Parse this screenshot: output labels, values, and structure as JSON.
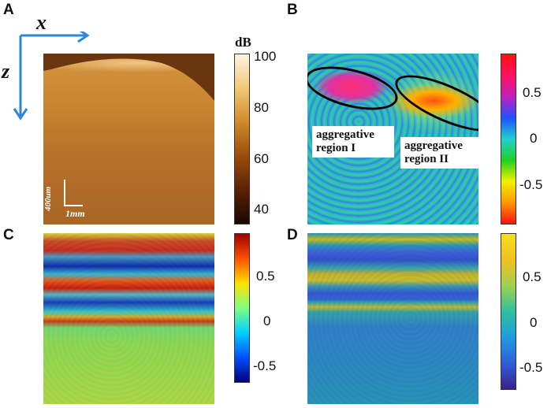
{
  "panels": {
    "A": {
      "label": "A",
      "axis_x": "x",
      "axis_z": "z",
      "scalebar_v": "400um",
      "scalebar_h": "1mm",
      "colorbar": {
        "unit": "dB",
        "ticks": [
          "100",
          "80",
          "60",
          "40"
        ],
        "colors": [
          "#1a0802",
          "#5a2205",
          "#9c4c0c",
          "#d08a2a",
          "#f0c97a",
          "#fbf3e3"
        ]
      }
    },
    "B": {
      "label": "B",
      "region1": "aggregative region I",
      "region2": "aggregative region II",
      "colorbar": {
        "ticks": [
          "0.5",
          "0",
          "-0.5"
        ],
        "colors": [
          "#ff1010",
          "#ff9a00",
          "#f0f000",
          "#20d020",
          "#20d0d0",
          "#2050ff",
          "#c020c0",
          "#ff1030"
        ]
      }
    },
    "C": {
      "label": "C",
      "colorbar": {
        "ticks": [
          "0.5",
          "0",
          "-0.5"
        ],
        "colors": [
          "#00007a",
          "#0050ff",
          "#00d0ff",
          "#80ff80",
          "#ffe000",
          "#ff5000",
          "#a00000"
        ]
      }
    },
    "D": {
      "label": "D",
      "colorbar": {
        "ticks": [
          "0.5",
          "0",
          "-0.5"
        ],
        "colors": [
          "#3b1f8c",
          "#2f5fd8",
          "#1f9be0",
          "#2fc0a0",
          "#a0d050",
          "#f0c020",
          "#f8e020"
        ]
      }
    }
  }
}
